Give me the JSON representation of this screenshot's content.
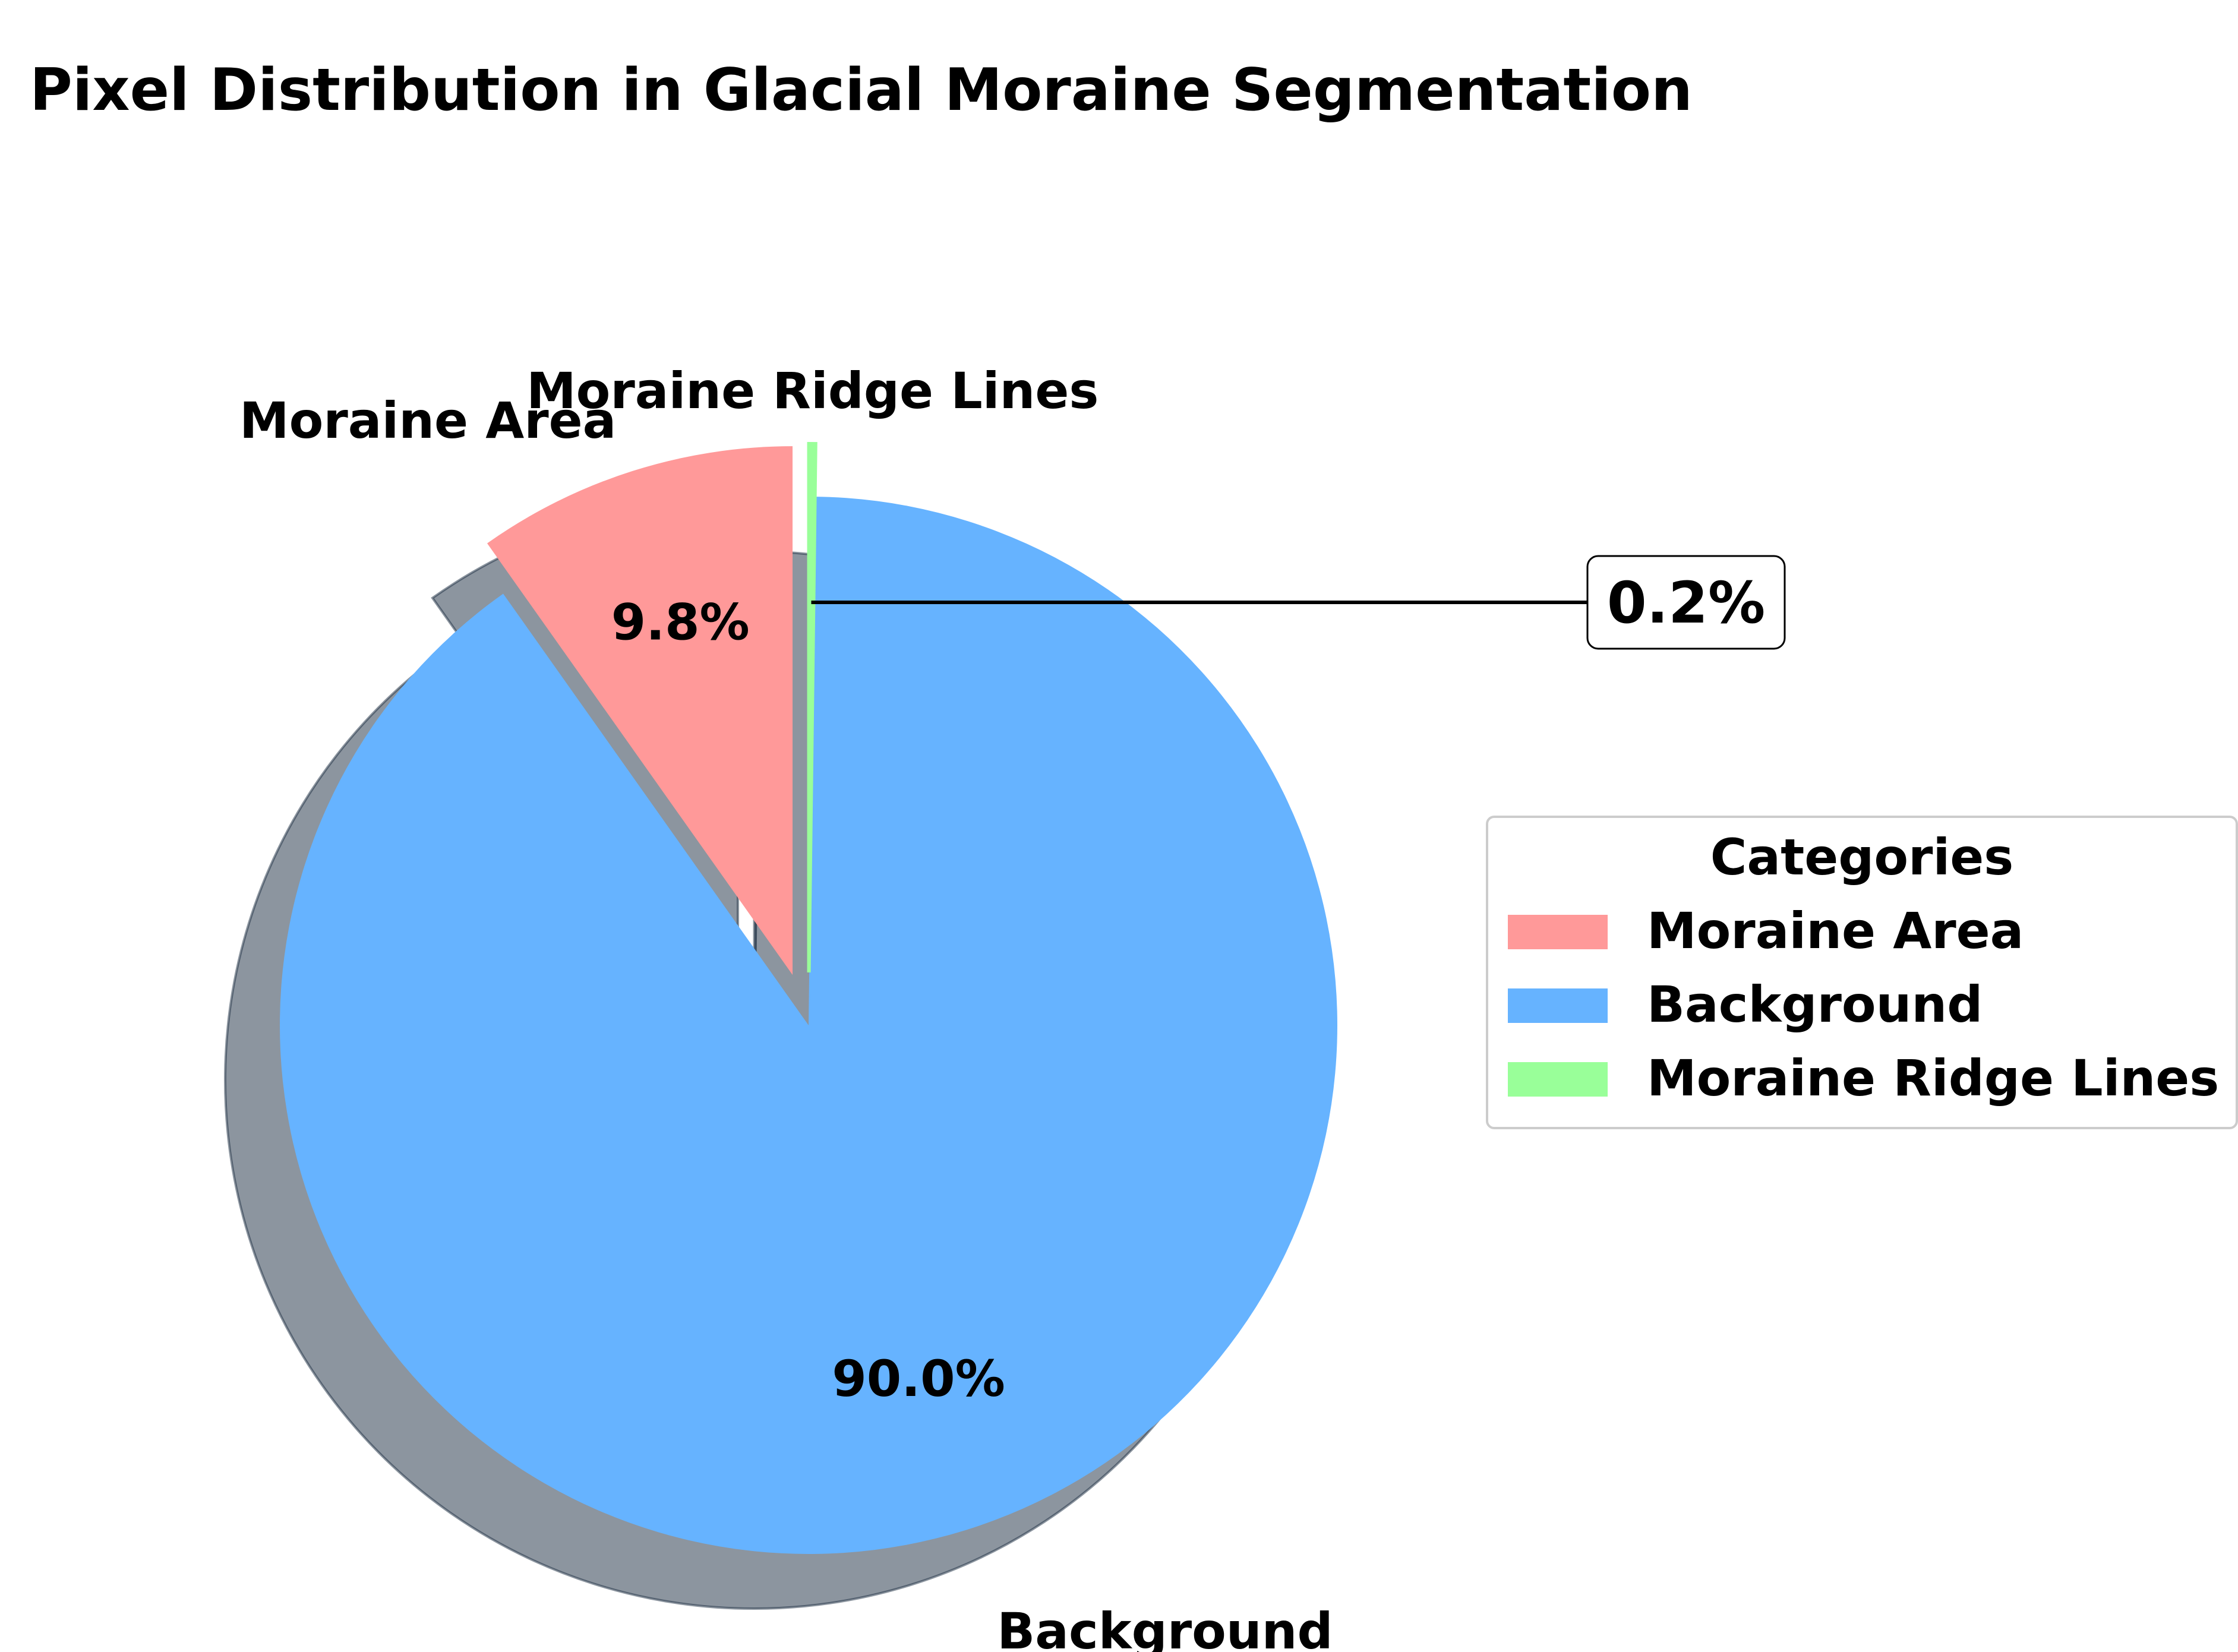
{
  "chart_data": {
    "type": "pie",
    "title": "Pixel Distribution in Glacial Moraine Segmentation",
    "slices": [
      {
        "label": "Moraine Area",
        "value": 9.8,
        "display": "9.8%",
        "color": "#FF9999",
        "exploded": true
      },
      {
        "label": "Background",
        "value": 90.0,
        "display": "90.0%",
        "color": "#66B3FF",
        "exploded": false
      },
      {
        "label": "Moraine Ridge Lines",
        "value": 0.2,
        "display": "0.2%",
        "color": "#99FF99",
        "exploded": true
      }
    ],
    "shadow": true,
    "start_angle": 90,
    "legend": {
      "title": "Categories",
      "placement": "center-right",
      "items": [
        "Moraine Area",
        "Background",
        "Moraine Ridge Lines"
      ]
    }
  }
}
